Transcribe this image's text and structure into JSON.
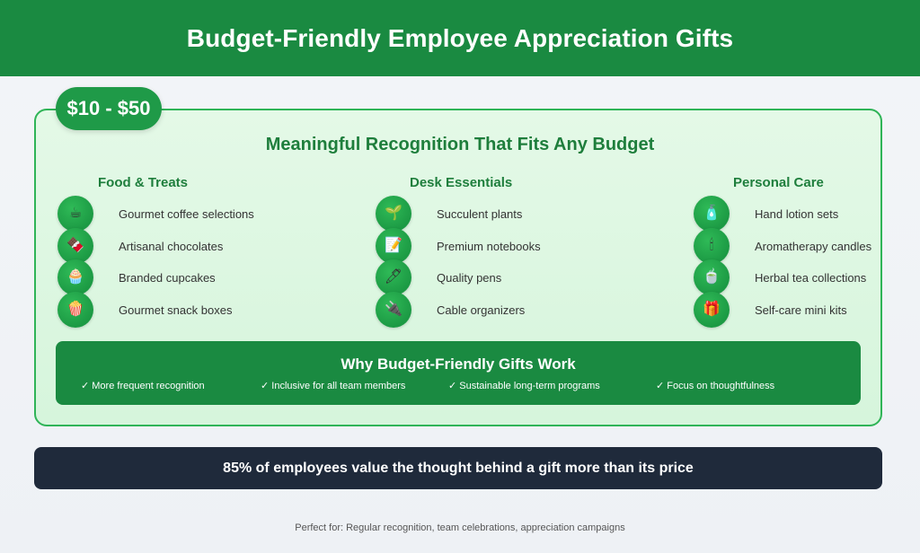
{
  "header": {
    "title": "Budget-Friendly Employee Appreciation Gifts"
  },
  "price_badge": "$10 - $50",
  "card": {
    "title": "Meaningful Recognition That Fits Any Budget"
  },
  "columns": [
    {
      "title": "Food & Treats",
      "items": [
        {
          "icon": "☕",
          "icon_name": "coffee-icon",
          "label": "Gourmet coffee selections"
        },
        {
          "icon": "🍫",
          "icon_name": "chocolate-icon",
          "label": "Artisanal chocolates"
        },
        {
          "icon": "🧁",
          "icon_name": "cupcake-icon",
          "label": "Branded cupcakes"
        },
        {
          "icon": "🍿",
          "icon_name": "popcorn-icon",
          "label": "Gourmet snack boxes"
        }
      ]
    },
    {
      "title": "Desk Essentials",
      "items": [
        {
          "icon": "🌱",
          "icon_name": "plant-icon",
          "label": "Succulent plants"
        },
        {
          "icon": "📝",
          "icon_name": "notebook-icon",
          "label": "Premium notebooks"
        },
        {
          "icon": "🖊",
          "icon_name": "pen-icon",
          "label": "Quality pens"
        },
        {
          "icon": "🔌",
          "icon_name": "cable-icon",
          "label": "Cable organizers"
        }
      ]
    },
    {
      "title": "Personal Care",
      "items": [
        {
          "icon": "🧴",
          "icon_name": "lotion-icon",
          "label": "Hand lotion sets"
        },
        {
          "icon": "🕯",
          "icon_name": "candle-icon",
          "label": "Aromatherapy candles"
        },
        {
          "icon": "🍵",
          "icon_name": "tea-icon",
          "label": "Herbal tea collections"
        },
        {
          "icon": "🎁",
          "icon_name": "gift-icon",
          "label": "Self-care mini kits"
        }
      ]
    }
  ],
  "why": {
    "title": "Why Budget-Friendly Gifts Work",
    "points": [
      "✓ More frequent recognition",
      "✓ Inclusive for all team members",
      "✓ Sustainable long-term programs",
      "✓ Focus on thoughtfulness"
    ]
  },
  "stat": "85% of employees value the thought behind a gift more than its price",
  "footer": "Perfect for: Regular recognition, team celebrations, appreciation campaigns",
  "colors": {
    "header_green": "#1a8a41",
    "accent_green": "#1e7e3c",
    "card_background": "#dff7e3",
    "stat_background": "#1f2a3b"
  }
}
